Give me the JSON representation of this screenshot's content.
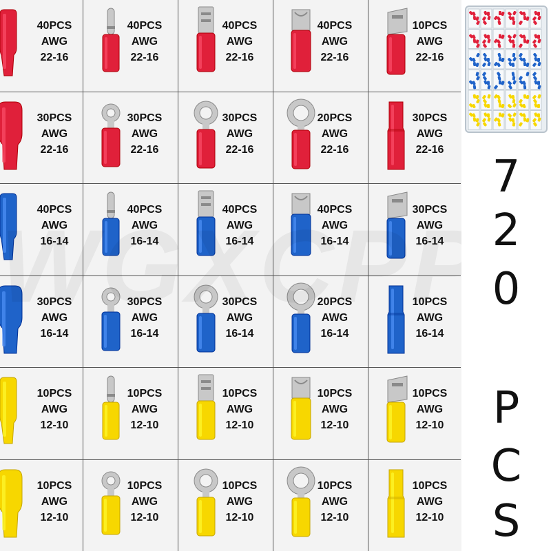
{
  "watermark": "WGXCPP",
  "colors": {
    "red": "#e0203a",
    "blue": "#1f63c9",
    "yellow": "#f7d700",
    "metal": "#c8c8c8",
    "line": "#555555"
  },
  "grid": [
    [
      {
        "type": "female-insulated",
        "color": "red",
        "pcs": "40PCS",
        "awg_label": "AWG",
        "awg": "22-16"
      },
      {
        "type": "bullet",
        "color": "red",
        "pcs": "40PCS",
        "awg_label": "AWG",
        "awg": "22-16"
      },
      {
        "type": "male-spade",
        "color": "red",
        "pcs": "40PCS",
        "awg_label": "AWG",
        "awg": "22-16"
      },
      {
        "type": "female-spade",
        "color": "red",
        "pcs": "40PCS",
        "awg_label": "AWG",
        "awg": "22-16"
      },
      {
        "type": "piggyback",
        "color": "red",
        "pcs": "10PCS",
        "awg_label": "AWG",
        "awg": "22-16"
      }
    ],
    [
      {
        "type": "male-insulated",
        "color": "red",
        "pcs": "30PCS",
        "awg_label": "AWG",
        "awg": "22-16"
      },
      {
        "type": "ring-small",
        "color": "red",
        "pcs": "30PCS",
        "awg_label": "AWG",
        "awg": "22-16"
      },
      {
        "type": "ring-medium",
        "color": "red",
        "pcs": "30PCS",
        "awg_label": "AWG",
        "awg": "22-16"
      },
      {
        "type": "ring-large",
        "color": "red",
        "pcs": "20PCS",
        "awg_label": "AWG",
        "awg": "22-16"
      },
      {
        "type": "butt",
        "color": "red",
        "pcs": "30PCS",
        "awg_label": "AWG",
        "awg": "22-16"
      }
    ],
    [
      {
        "type": "female-insulated",
        "color": "blue",
        "pcs": "40PCS",
        "awg_label": "AWG",
        "awg": "16-14"
      },
      {
        "type": "bullet",
        "color": "blue",
        "pcs": "40PCS",
        "awg_label": "AWG",
        "awg": "16-14"
      },
      {
        "type": "male-spade",
        "color": "blue",
        "pcs": "40PCS",
        "awg_label": "AWG",
        "awg": "16-14"
      },
      {
        "type": "female-spade",
        "color": "blue",
        "pcs": "40PCS",
        "awg_label": "AWG",
        "awg": "16-14"
      },
      {
        "type": "piggyback",
        "color": "blue",
        "pcs": "30PCS",
        "awg_label": "AWG",
        "awg": "16-14"
      }
    ],
    [
      {
        "type": "male-insulated",
        "color": "blue",
        "pcs": "30PCS",
        "awg_label": "AWG",
        "awg": "16-14"
      },
      {
        "type": "ring-small",
        "color": "blue",
        "pcs": "30PCS",
        "awg_label": "AWG",
        "awg": "16-14"
      },
      {
        "type": "ring-medium",
        "color": "blue",
        "pcs": "30PCS",
        "awg_label": "AWG",
        "awg": "16-14"
      },
      {
        "type": "ring-large",
        "color": "blue",
        "pcs": "20PCS",
        "awg_label": "AWG",
        "awg": "16-14"
      },
      {
        "type": "butt",
        "color": "blue",
        "pcs": "10PCS",
        "awg_label": "AWG",
        "awg": "16-14"
      }
    ],
    [
      {
        "type": "female-insulated",
        "color": "yellow",
        "pcs": "10PCS",
        "awg_label": "AWG",
        "awg": "12-10"
      },
      {
        "type": "bullet",
        "color": "yellow",
        "pcs": "10PCS",
        "awg_label": "AWG",
        "awg": "12-10"
      },
      {
        "type": "male-spade",
        "color": "yellow",
        "pcs": "10PCS",
        "awg_label": "AWG",
        "awg": "12-10"
      },
      {
        "type": "female-spade",
        "color": "yellow",
        "pcs": "10PCS",
        "awg_label": "AWG",
        "awg": "12-10"
      },
      {
        "type": "piggyback",
        "color": "yellow",
        "pcs": "10PCS",
        "awg_label": "AWG",
        "awg": "12-10"
      }
    ],
    [
      {
        "type": "male-insulated",
        "color": "yellow",
        "pcs": "10PCS",
        "awg_label": "AWG",
        "awg": "12-10"
      },
      {
        "type": "ring-small",
        "color": "yellow",
        "pcs": "10PCS",
        "awg_label": "AWG",
        "awg": "12-10"
      },
      {
        "type": "ring-medium",
        "color": "yellow",
        "pcs": "10PCS",
        "awg_label": "AWG",
        "awg": "12-10"
      },
      {
        "type": "ring-large",
        "color": "yellow",
        "pcs": "10PCS",
        "awg_label": "AWG",
        "awg": "12-10"
      },
      {
        "type": "butt",
        "color": "yellow",
        "pcs": "10PCS",
        "awg_label": "AWG",
        "awg": "12-10"
      }
    ]
  ],
  "headline": {
    "chars": [
      "7",
      "2",
      "0",
      "P",
      "C",
      "S"
    ]
  },
  "storage_box": {
    "row_colors": [
      "red",
      "red",
      "blue",
      "blue",
      "yellow",
      "yellow"
    ]
  }
}
